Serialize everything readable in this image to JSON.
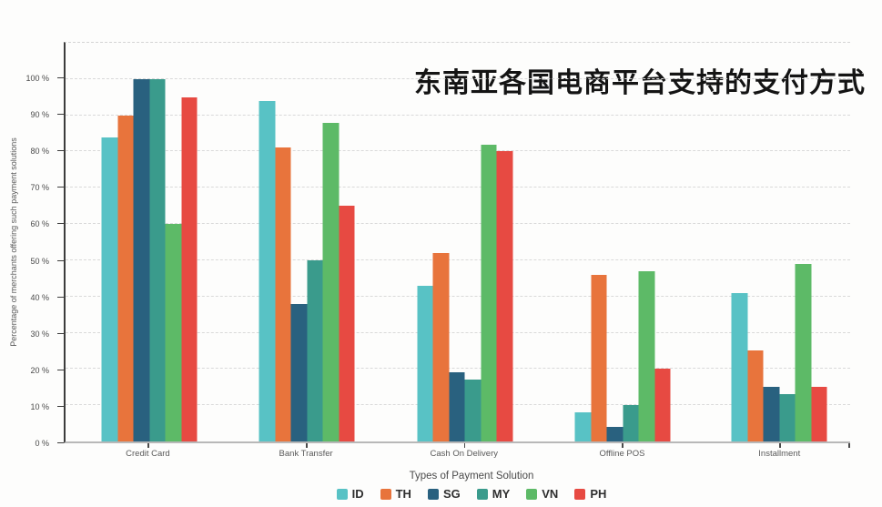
{
  "chart_data": {
    "type": "bar",
    "title": "东南亚各国电商平台支持的支付方式",
    "xlabel": "Types of Payment Solution",
    "ylabel": "Percentage of merchants offering such payment solutions",
    "categories": [
      "Credit Card",
      "Bank Transfer",
      "Cash On Delivery",
      "Offline POS",
      "Installment"
    ],
    "series": [
      {
        "name": "ID",
        "color": "#58c2c5",
        "values": [
          84,
          94,
          43,
          8,
          41
        ]
      },
      {
        "name": "TH",
        "color": "#e8743c",
        "values": [
          90,
          81,
          52,
          46,
          25
        ]
      },
      {
        "name": "SG",
        "color": "#29617f",
        "values": [
          100,
          38,
          19,
          4,
          15
        ]
      },
      {
        "name": "MY",
        "color": "#3a9b8c",
        "values": [
          100,
          50,
          17,
          10,
          13
        ]
      },
      {
        "name": "VN",
        "color": "#5dba67",
        "values": [
          60,
          88,
          82,
          47,
          49
        ]
      },
      {
        "name": "PH",
        "color": "#e74a42",
        "values": [
          95,
          65,
          80,
          20,
          15
        ]
      }
    ],
    "y_ticks": [
      "0 %",
      "10 %",
      "20 %",
      "30 %",
      "40 %",
      "50 %",
      "60 %",
      "70 %",
      "80 %",
      "90 %",
      "100 %"
    ],
    "ylim": [
      0,
      110
    ],
    "grid": "horizontal-dashed",
    "legend_position": "bottom",
    "value_unit": "%"
  }
}
